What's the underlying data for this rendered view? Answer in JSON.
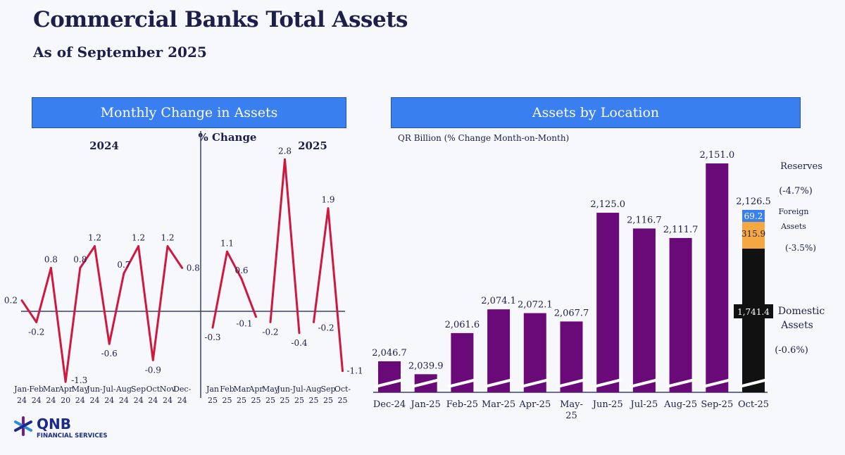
{
  "title": "Commercial Banks Total Assets",
  "subtitle": "As of September 2025",
  "colors": {
    "header": "#3a7ff0",
    "line": "#d0183f",
    "bar": "#6a0a78",
    "domestic": "#111111",
    "foreign": "#f5a742",
    "reserves": "#3a7ff0"
  },
  "logo": {
    "name": "QNB",
    "sub": "FINANCIAL SERVICES"
  },
  "chart_data": [
    {
      "type": "line",
      "title": "Monthly Change in Assets",
      "center_label": "% Change",
      "panels": [
        {
          "label": "2024",
          "categories": [
            "Jan-24",
            "Feb-24",
            "Mar-24",
            "Apr-20",
            "May-24",
            "Jun-24",
            "Jul-24",
            "Aug-24",
            "Sep-24",
            "Oct-24",
            "Nov-24",
            "Dec-24"
          ],
          "tick_top": [
            "Jan-",
            "Feb",
            "Mar",
            "Apr",
            "May",
            "Jun-",
            "Jul-",
            "Aug",
            "Sep",
            "Oct",
            "Nov",
            "Dec-"
          ],
          "tick_bottom": [
            "24",
            "24",
            "24",
            "20",
            "24",
            "24",
            "24",
            "24",
            "24",
            "24",
            "24",
            "24"
          ],
          "values": [
            0.2,
            -0.2,
            0.8,
            -1.3,
            0.8,
            1.2,
            -0.6,
            0.7,
            1.2,
            -0.9,
            1.2,
            0.8
          ]
        },
        {
          "label": "2025",
          "categories": [
            "Jan-25",
            "Feb-25",
            "Mar-25",
            "Apr-25",
            "May-25",
            "Jun-25",
            "Jul-25",
            "Aug-25",
            "Sep-25",
            "Oct-25"
          ],
          "tick_top": [
            "Jan",
            "Feb",
            "Mar",
            "Apr",
            "May",
            "Jun-",
            "Jul-",
            "Aug",
            "Sep",
            "Oct-"
          ],
          "tick_bottom": [
            "25",
            "25",
            "25",
            "25",
            "25",
            "25",
            "25",
            "25",
            "25",
            "25"
          ],
          "values": [
            -0.3,
            1.1,
            0.6,
            -0.1,
            -0.2,
            2.8,
            -0.4,
            -0.2,
            1.9,
            -1.1
          ]
        }
      ]
    },
    {
      "type": "bar",
      "title": "Assets by Location",
      "ylabel": "QR Billion (% Change Month-on-Month)",
      "categories": [
        "Dec-24",
        "Jan-25",
        "Feb-25",
        "Mar-25",
        "Apr-25",
        "May-25",
        "Jun-25",
        "Jul-25",
        "Aug-25",
        "Sep-25",
        "Oct-25"
      ],
      "values": [
        2046.7,
        2039.9,
        2061.6,
        2074.1,
        2072.1,
        2067.7,
        2125.0,
        2116.7,
        2111.7,
        2151.0,
        2126.5
      ],
      "labels": [
        "2,046.7",
        "2,039.9",
        "2,061.6",
        "2,074.1",
        "2,072.1",
        "2,067.7",
        "2,125.0",
        "2,116.7",
        "2,111.7",
        "2,151.0",
        "2,126.5"
      ],
      "axis_break": true,
      "stack_last": {
        "reserves": {
          "value": 69.2,
          "label": "69.2",
          "name": "Reserves",
          "change": "(-4.7%)"
        },
        "foreign": {
          "value": 315.9,
          "label": "315.9",
          "name1": "Foreign",
          "name2": "Assets",
          "change": "(-3.5%)"
        },
        "domestic": {
          "value": 1741.4,
          "label": "1,741.4",
          "name1": "Domestic",
          "name2": "Assets",
          "change": "(-0.6%)"
        }
      }
    }
  ]
}
